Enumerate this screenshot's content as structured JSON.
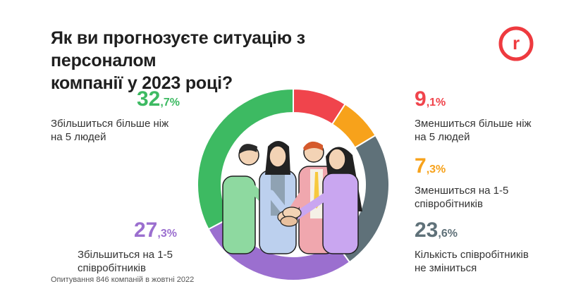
{
  "title_line1": "Як ви прогнозуєте ситуацію з персоналом",
  "title_line2": "компанії у 2023 році?",
  "footnote": "Опитування 846 компаній в жовтні 2022",
  "logo_letter": "r",
  "colors": {
    "brand_red": "#ee3a3f",
    "green": "#3dba62",
    "purple": "#9b6fcf",
    "red": "#f0444c",
    "orange": "#f7a21b",
    "slate": "#5f7179"
  },
  "chart_data": {
    "type": "pie",
    "donut": true,
    "slices": [
      {
        "label": "Зменшиться більше ніж на 5 людей",
        "int": "9",
        "dec": ",1%",
        "value": 9.1,
        "color": "#f0444c"
      },
      {
        "label": "Зменшиться на 1-5 співробітників",
        "int": "7",
        "dec": ",3%",
        "value": 7.3,
        "color": "#f7a21b"
      },
      {
        "label": "Кількість співробітників не зміниться",
        "int": "23",
        "dec": ",6%",
        "value": 23.6,
        "color": "#5f7179"
      },
      {
        "label": "Збільшиться на 1-5 співробітників",
        "int": "27",
        "dec": ",3%",
        "value": 27.3,
        "color": "#9b6fcf"
      },
      {
        "label": "Збільшиться більше ніж на 5 людей",
        "int": "32",
        "dec": ",7%",
        "value": 32.7,
        "color": "#3dba62"
      }
    ]
  },
  "stats": [
    {
      "int": "32",
      "dec": ",7%",
      "line1": "Збільшиться більше ніж",
      "line2": "на 5 людей",
      "color": "#3dba62"
    },
    {
      "int": "27",
      "dec": ",3%",
      "line1": "Збільшиться на 1-5",
      "line2": "співробітників",
      "color": "#9b6fcf"
    },
    {
      "int": "9",
      "dec": ",1%",
      "line1": "Зменшиться більше ніж",
      "line2": "на 5 людей",
      "color": "#f0444c"
    },
    {
      "int": "7",
      "dec": ",3%",
      "line1": "Зменшиться на 1-5",
      "line2": "співробітників",
      "color": "#f7a21b"
    },
    {
      "int": "23",
      "dec": ",6%",
      "line1": "Кількість співробітників",
      "line2": "не зміниться",
      "color": "#5f7179"
    }
  ]
}
